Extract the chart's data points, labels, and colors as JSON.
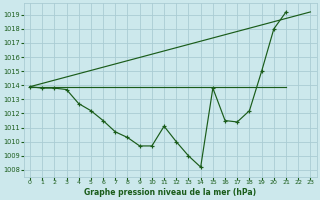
{
  "xlabel": "Graphe pression niveau de la mer (hPa)",
  "background_color": "#cce8ec",
  "grid_color": "#aaccd4",
  "line_color": "#1a5c1a",
  "ylim": [
    1007.5,
    1019.8
  ],
  "yticks": [
    1008,
    1009,
    1010,
    1011,
    1012,
    1013,
    1014,
    1015,
    1016,
    1017,
    1018,
    1019
  ],
  "xlim": [
    -0.5,
    23.5
  ],
  "xticks": [
    0,
    1,
    2,
    3,
    4,
    5,
    6,
    7,
    8,
    9,
    10,
    11,
    12,
    13,
    14,
    15,
    16,
    17,
    18,
    19,
    20,
    21,
    22,
    23
  ],
  "series_zigzag": {
    "x": [
      0,
      1,
      2,
      3,
      4,
      5,
      6,
      7,
      8,
      9,
      10,
      11,
      12,
      13,
      14,
      15,
      16,
      17,
      18,
      19,
      20,
      21
    ],
    "y": [
      1013.9,
      1013.8,
      1013.8,
      1013.7,
      1012.7,
      1012.2,
      1011.5,
      1010.7,
      1010.3,
      1009.7,
      1009.7,
      1011.1,
      1010.0,
      1009.0,
      1008.2,
      1013.8,
      1011.5,
      1011.4,
      1012.2,
      1015.0,
      1018.0,
      1019.2
    ]
  },
  "series_flat": {
    "x": [
      0,
      21
    ],
    "y": [
      1013.9,
      1013.9
    ]
  },
  "series_diagonal": {
    "x": [
      0,
      23
    ],
    "y": [
      1013.9,
      1019.2
    ]
  }
}
